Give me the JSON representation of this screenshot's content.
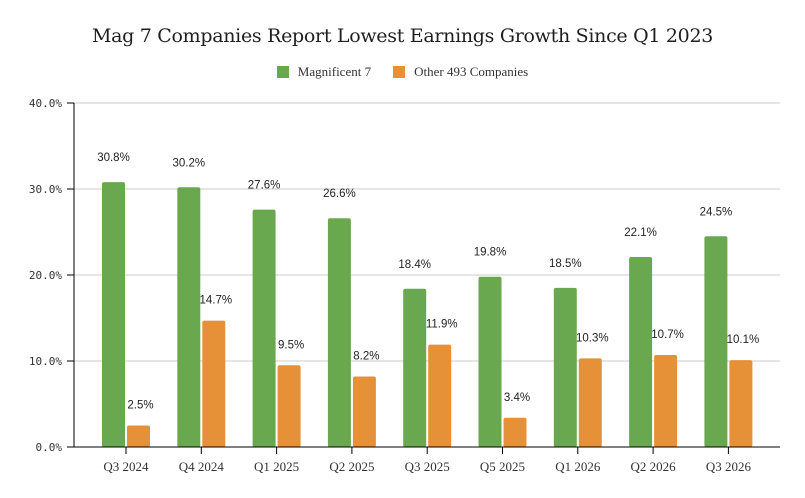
{
  "chart_data": {
    "type": "bar",
    "title": "Mag 7 Companies Report Lowest Earnings Growth Since Q1 2023",
    "xlabel": "",
    "ylabel": "",
    "ylim": [
      0,
      40
    ],
    "yticks": [
      0,
      10,
      20,
      30,
      40
    ],
    "ytick_labels": [
      "0.0%",
      "10.0%",
      "20.0%",
      "30.0%",
      "40.0%"
    ],
    "grid": true,
    "legend_position": "top-center",
    "categories": [
      "Q3 2024",
      "Q4 2024",
      "Q1 2025",
      "Q2 2025",
      "Q3 2025",
      "Q5 2025",
      "Q1 2026",
      "Q2 2026",
      "Q3 2026"
    ],
    "series": [
      {
        "name": "Magnificent 7",
        "color": "#6aa84f",
        "values": [
          30.8,
          30.2,
          27.6,
          26.6,
          18.4,
          19.8,
          18.5,
          22.1,
          24.5
        ],
        "labels": [
          "30.8%",
          "30.2%",
          "27.6%",
          "26.6%",
          "18.4%",
          "19.8%",
          "18.5%",
          "22.1%",
          "24.5%"
        ]
      },
      {
        "name": "Other 493 Companies",
        "color": "#e69138",
        "values": [
          2.5,
          14.7,
          9.5,
          8.2,
          11.9,
          3.4,
          10.3,
          10.7,
          10.1
        ],
        "labels": [
          "2.5%",
          "14.7%",
          "9.5%",
          "8.2%",
          "11.9%",
          "3.4%",
          "10.3%",
          "10.7%",
          "10.1%"
        ]
      }
    ]
  },
  "colors": {
    "gridline": "#cccccc",
    "axis": "#000000"
  }
}
